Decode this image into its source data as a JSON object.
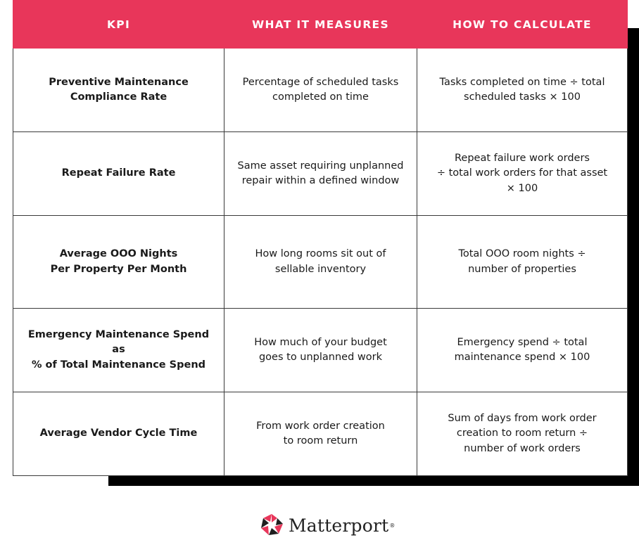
{
  "table": {
    "headers": [
      "KPI",
      "WHAT IT MEASURES",
      "HOW TO CALCULATE"
    ],
    "rows": [
      {
        "kpi": "Preventive Maintenance\nCompliance Rate",
        "measures": "Percentage of scheduled tasks\ncompleted on time",
        "calculate": "Tasks completed on time ÷ total\nscheduled tasks × 100"
      },
      {
        "kpi": "Repeat Failure Rate",
        "measures": "Same asset requiring unplanned\nrepair within a defined window",
        "calculate": "Repeat failure work orders\n÷  total work orders for that asset\n× 100"
      },
      {
        "kpi": "Average OOO Nights\nPer Property Per Month",
        "measures": "How long rooms sit out of\nsellable inventory",
        "calculate": "Total OOO room nights ÷\nnumber of properties"
      },
      {
        "kpi": "Emergency Maintenance Spend as\n% of Total Maintenance Spend",
        "measures": "How much of your budget\ngoes to unplanned work",
        "calculate": "Emergency spend ÷ total\nmaintenance spend × 100"
      },
      {
        "kpi": "Average Vendor Cycle Time",
        "measures": "From work order creation\nto room return",
        "calculate": "Sum of days from work order\ncreation to room return ÷\nnumber of work orders"
      }
    ]
  },
  "logo": {
    "wordmark": "Matterport",
    "registered": "®",
    "icon": "matterport-pinwheel-icon",
    "colors": {
      "red": "#e8365a",
      "dark": "#1f1f1f"
    }
  },
  "colors": {
    "header_bg": "#e8365a",
    "header_text": "#ffffff",
    "border": "#3a3a3a",
    "shadow": "#000000"
  }
}
